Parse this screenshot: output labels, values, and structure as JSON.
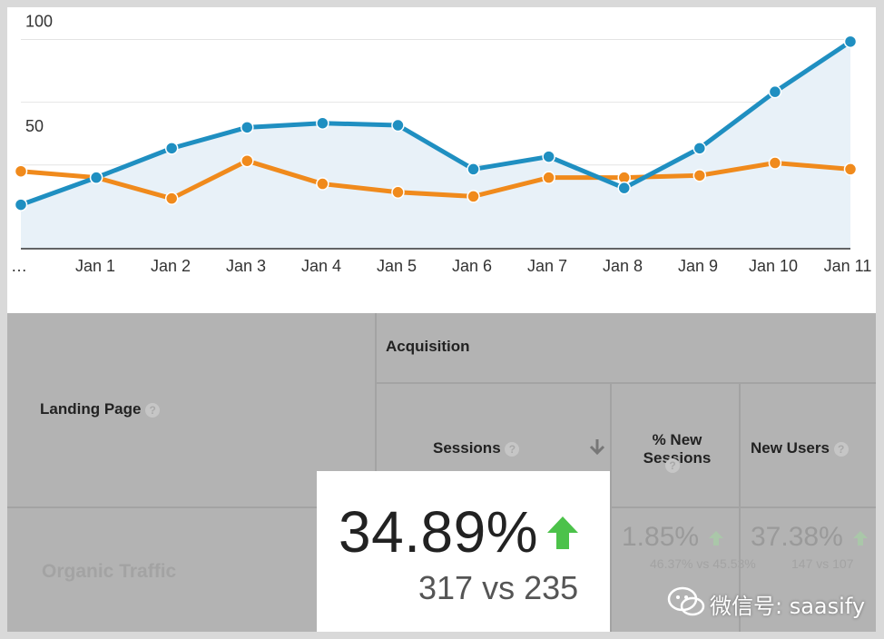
{
  "chart_data": {
    "type": "line",
    "categories": [
      "…",
      "Jan 1",
      "Jan 2",
      "Jan 3",
      "Jan 4",
      "Jan 5",
      "Jan 6",
      "Jan 7",
      "Jan 8",
      "Jan 9",
      "Jan 10",
      "Jan 11"
    ],
    "series": [
      {
        "color": "#1f8fc1",
        "fill": "#e8f1f8",
        "values": [
          21,
          34,
          48,
          58,
          60,
          59,
          38,
          44,
          29,
          48,
          75,
          99
        ]
      },
      {
        "color": "#f08a1c",
        "values": [
          37,
          34,
          24,
          42,
          31,
          27,
          25,
          34,
          34,
          35,
          41,
          38
        ]
      }
    ],
    "yticks": [
      "100",
      "50"
    ],
    "ylim": [
      0,
      105
    ],
    "grid": true
  },
  "table": {
    "landing_page_header": "Landing Page",
    "acquisition_header": "Acquisition",
    "sessions_header": "Sessions",
    "pct_new_sessions_header": "% New\nSessions",
    "new_users_header": "New Users",
    "help_glyph": "?",
    "row_label": "Organic Traffic",
    "sessions_value": "34.89%",
    "sessions_compare": "317 vs 235",
    "pct_new_value": "1.85%",
    "pct_new_compare": "46.37% vs 45.53%",
    "new_users_value": "37.38%",
    "new_users_compare": "147 vs 107",
    "sort_icon": "arrow-down-icon",
    "trend_icon": "arrow-up-icon",
    "trend_color": "#4cc24a"
  },
  "watermark": {
    "text": "微信号: saasify",
    "icon": "wechat-icon"
  }
}
